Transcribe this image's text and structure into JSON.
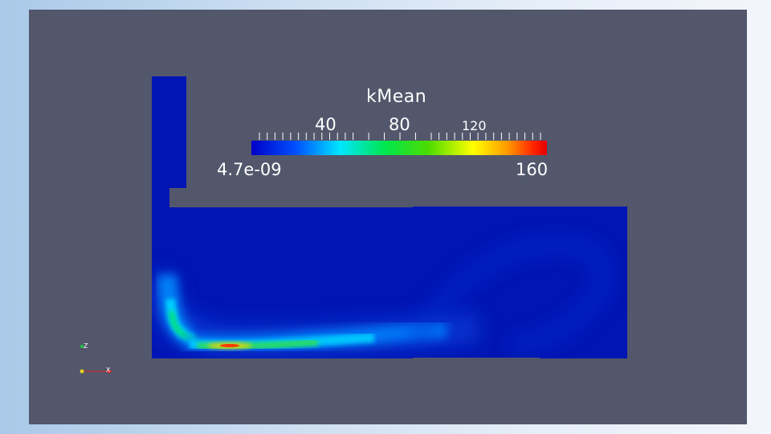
{
  "colorbar": {
    "title": "kMean",
    "min_label": "4.7e-09",
    "max_label": "160",
    "labels": [
      "40",
      "80",
      "120"
    ]
  },
  "orientation_axes": {
    "z_label": "Z",
    "x_label": "X"
  },
  "colors": {
    "background_gradient_start": "#a9c9e8",
    "background_gradient_end": "#f3f6fb",
    "viewport": "#52576b",
    "domain_fill": "#0015b4",
    "colormap": [
      "#0000c8",
      "#0050ff",
      "#00e6ff",
      "#00e650",
      "#4cdc00",
      "#ffff00",
      "#ff9600",
      "#ff2800",
      "#e60000"
    ]
  }
}
